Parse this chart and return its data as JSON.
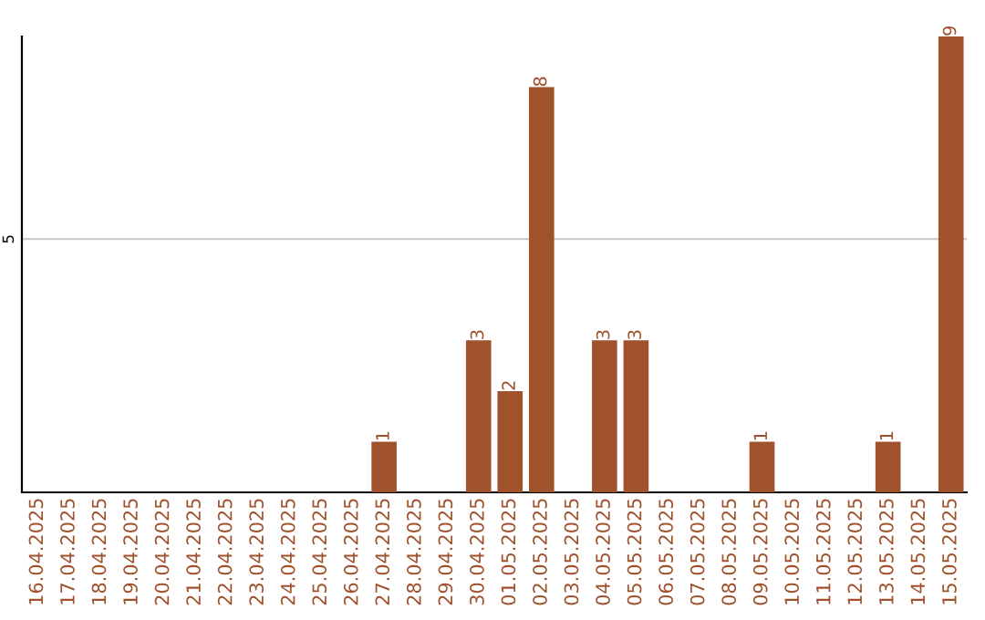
{
  "chart_data": {
    "type": "bar",
    "categories": [
      "16.04.2025",
      "17.04.2025",
      "18.04.2025",
      "19.04.2025",
      "20.04.2025",
      "21.04.2025",
      "22.04.2025",
      "23.04.2025",
      "24.04.2025",
      "25.04.2025",
      "26.04.2025",
      "27.04.2025",
      "28.04.2025",
      "29.04.2025",
      "30.04.2025",
      "01.05.2025",
      "02.05.2025",
      "03.05.2025",
      "04.05.2025",
      "05.05.2025",
      "06.05.2025",
      "07.05.2025",
      "08.05.2025",
      "09.05.2025",
      "10.05.2025",
      "11.05.2025",
      "12.05.2025",
      "13.05.2025",
      "14.05.2025",
      "15.05.2025"
    ],
    "values": [
      0,
      0,
      0,
      0,
      0,
      0,
      0,
      0,
      0,
      0,
      0,
      1,
      0,
      0,
      3,
      2,
      8,
      0,
      3,
      3,
      0,
      0,
      0,
      1,
      0,
      0,
      0,
      1,
      0,
      9
    ],
    "value_labels": [
      null,
      null,
      null,
      null,
      null,
      null,
      null,
      null,
      null,
      null,
      null,
      "1",
      null,
      null,
      "3",
      "2",
      "8",
      null,
      "3",
      "3",
      null,
      null,
      null,
      "1",
      null,
      null,
      null,
      "1",
      null,
      "9"
    ],
    "color": "#a0522d",
    "ylim": [
      0,
      9
    ],
    "yticks": [
      5
    ],
    "grid": "y"
  }
}
